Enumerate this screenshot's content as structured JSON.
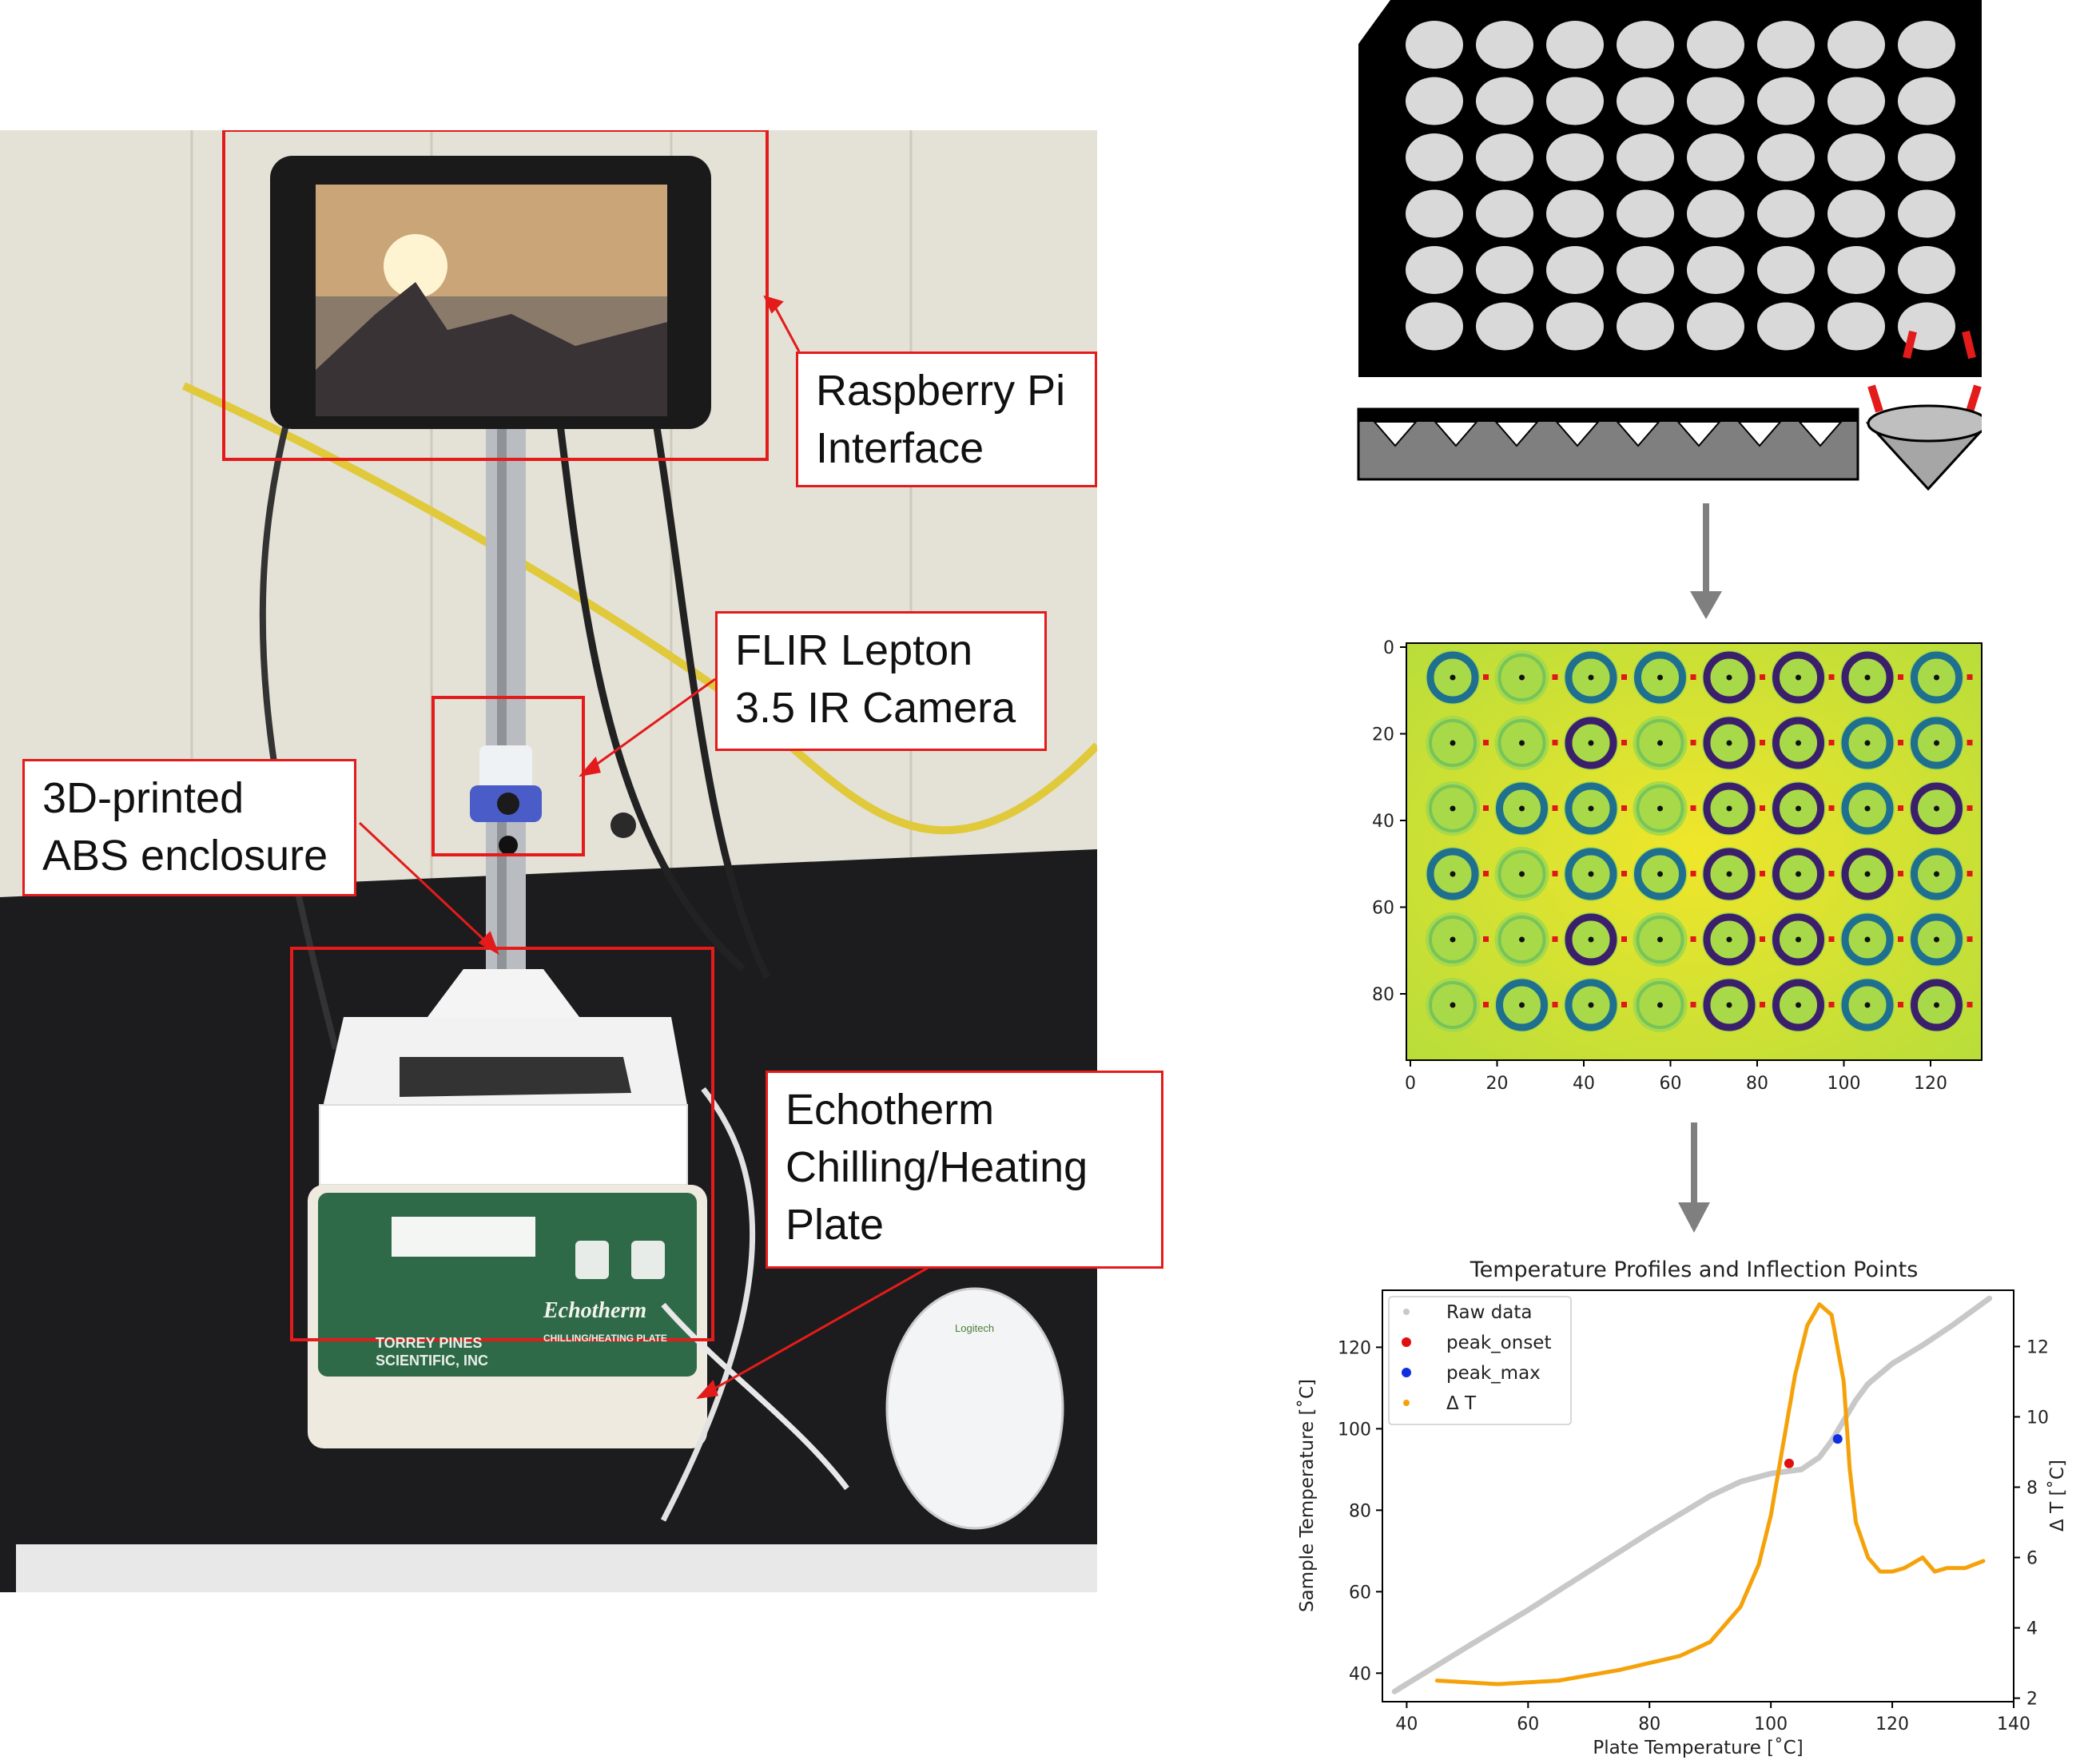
{
  "callouts": {
    "raspberry_pi": "Raspberry Pi\nInterface",
    "flir": "FLIR Lepton\n3.5 IR Camera",
    "enclosure": "3D-printed\nABS enclosure",
    "echotherm": "Echotherm\nChilling/Heating\nPlate"
  },
  "device_labels": {
    "brand": "TORREY PINES\nSCIENTIFIC, INC",
    "product": "Echotherm",
    "product_sub": "CHILLING/HEATING PLATE",
    "mouse_brand": "Logitech"
  },
  "colors": {
    "callout_border": "#e31b1b",
    "plate": "#000000",
    "well": "#d9d9d9",
    "heat_bg": "#e6e52a",
    "heat_ring": "#1f6f8f",
    "heat_dark": "#3b1f6b",
    "raw": "#c8c8c8",
    "onset": "#e01010",
    "max": "#1030e0",
    "delta": "#f5a20a"
  },
  "heatmap": {
    "x_ticks": [
      "0",
      "20",
      "40",
      "60",
      "80",
      "100",
      "120"
    ],
    "y_ticks": [
      "0",
      "20",
      "40",
      "60",
      "80"
    ]
  },
  "chart_data": {
    "type": "line",
    "title": "Temperature Profiles and Inflection Points",
    "xlabel": "Plate Temperature [˚C]",
    "ylabel": "Sample Temperature [˚C]",
    "y2label": "Δ T [˚C]",
    "xlim": [
      36,
      140
    ],
    "ylim": [
      33,
      134
    ],
    "y2lim": [
      1.9,
      13.6
    ],
    "x_ticks": [
      "40",
      "60",
      "80",
      "100",
      "120",
      "140"
    ],
    "y_ticks": [
      "40",
      "60",
      "80",
      "100",
      "120"
    ],
    "y2_ticks": [
      "2",
      "4",
      "6",
      "8",
      "10",
      "12"
    ],
    "legend_position": "top-left",
    "series": [
      {
        "name": "Raw data",
        "axis": "left",
        "x": [
          38,
          50,
          60,
          70,
          80,
          90,
          95,
          100,
          105,
          108,
          110,
          112,
          114,
          116,
          118,
          120,
          125,
          130,
          136
        ],
        "y": [
          35.5,
          46.5,
          55.5,
          65,
          74.5,
          83.5,
          87,
          89,
          90,
          93,
          97,
          102,
          107,
          111,
          113.5,
          116,
          120.5,
          125.5,
          132
        ]
      },
      {
        "name": "peak_onset",
        "axis": "left",
        "x": [
          103
        ],
        "y": [
          91.5
        ]
      },
      {
        "name": "peak_max",
        "axis": "left",
        "x": [
          111
        ],
        "y": [
          97.5
        ]
      },
      {
        "name": "Δ T",
        "axis": "right",
        "x": [
          45,
          55,
          65,
          75,
          85,
          90,
          95,
          98,
          100,
          102,
          104,
          106,
          108,
          110,
          112,
          113,
          114,
          116,
          118,
          120,
          122,
          125,
          127,
          129,
          132,
          135
        ],
        "y": [
          2.5,
          2.4,
          2.5,
          2.8,
          3.2,
          3.6,
          4.6,
          5.8,
          7.2,
          9.2,
          11.2,
          12.6,
          13.2,
          12.9,
          11.0,
          8.5,
          7.0,
          6.0,
          5.6,
          5.6,
          5.7,
          6.0,
          5.6,
          5.7,
          5.7,
          5.9
        ]
      }
    ]
  }
}
